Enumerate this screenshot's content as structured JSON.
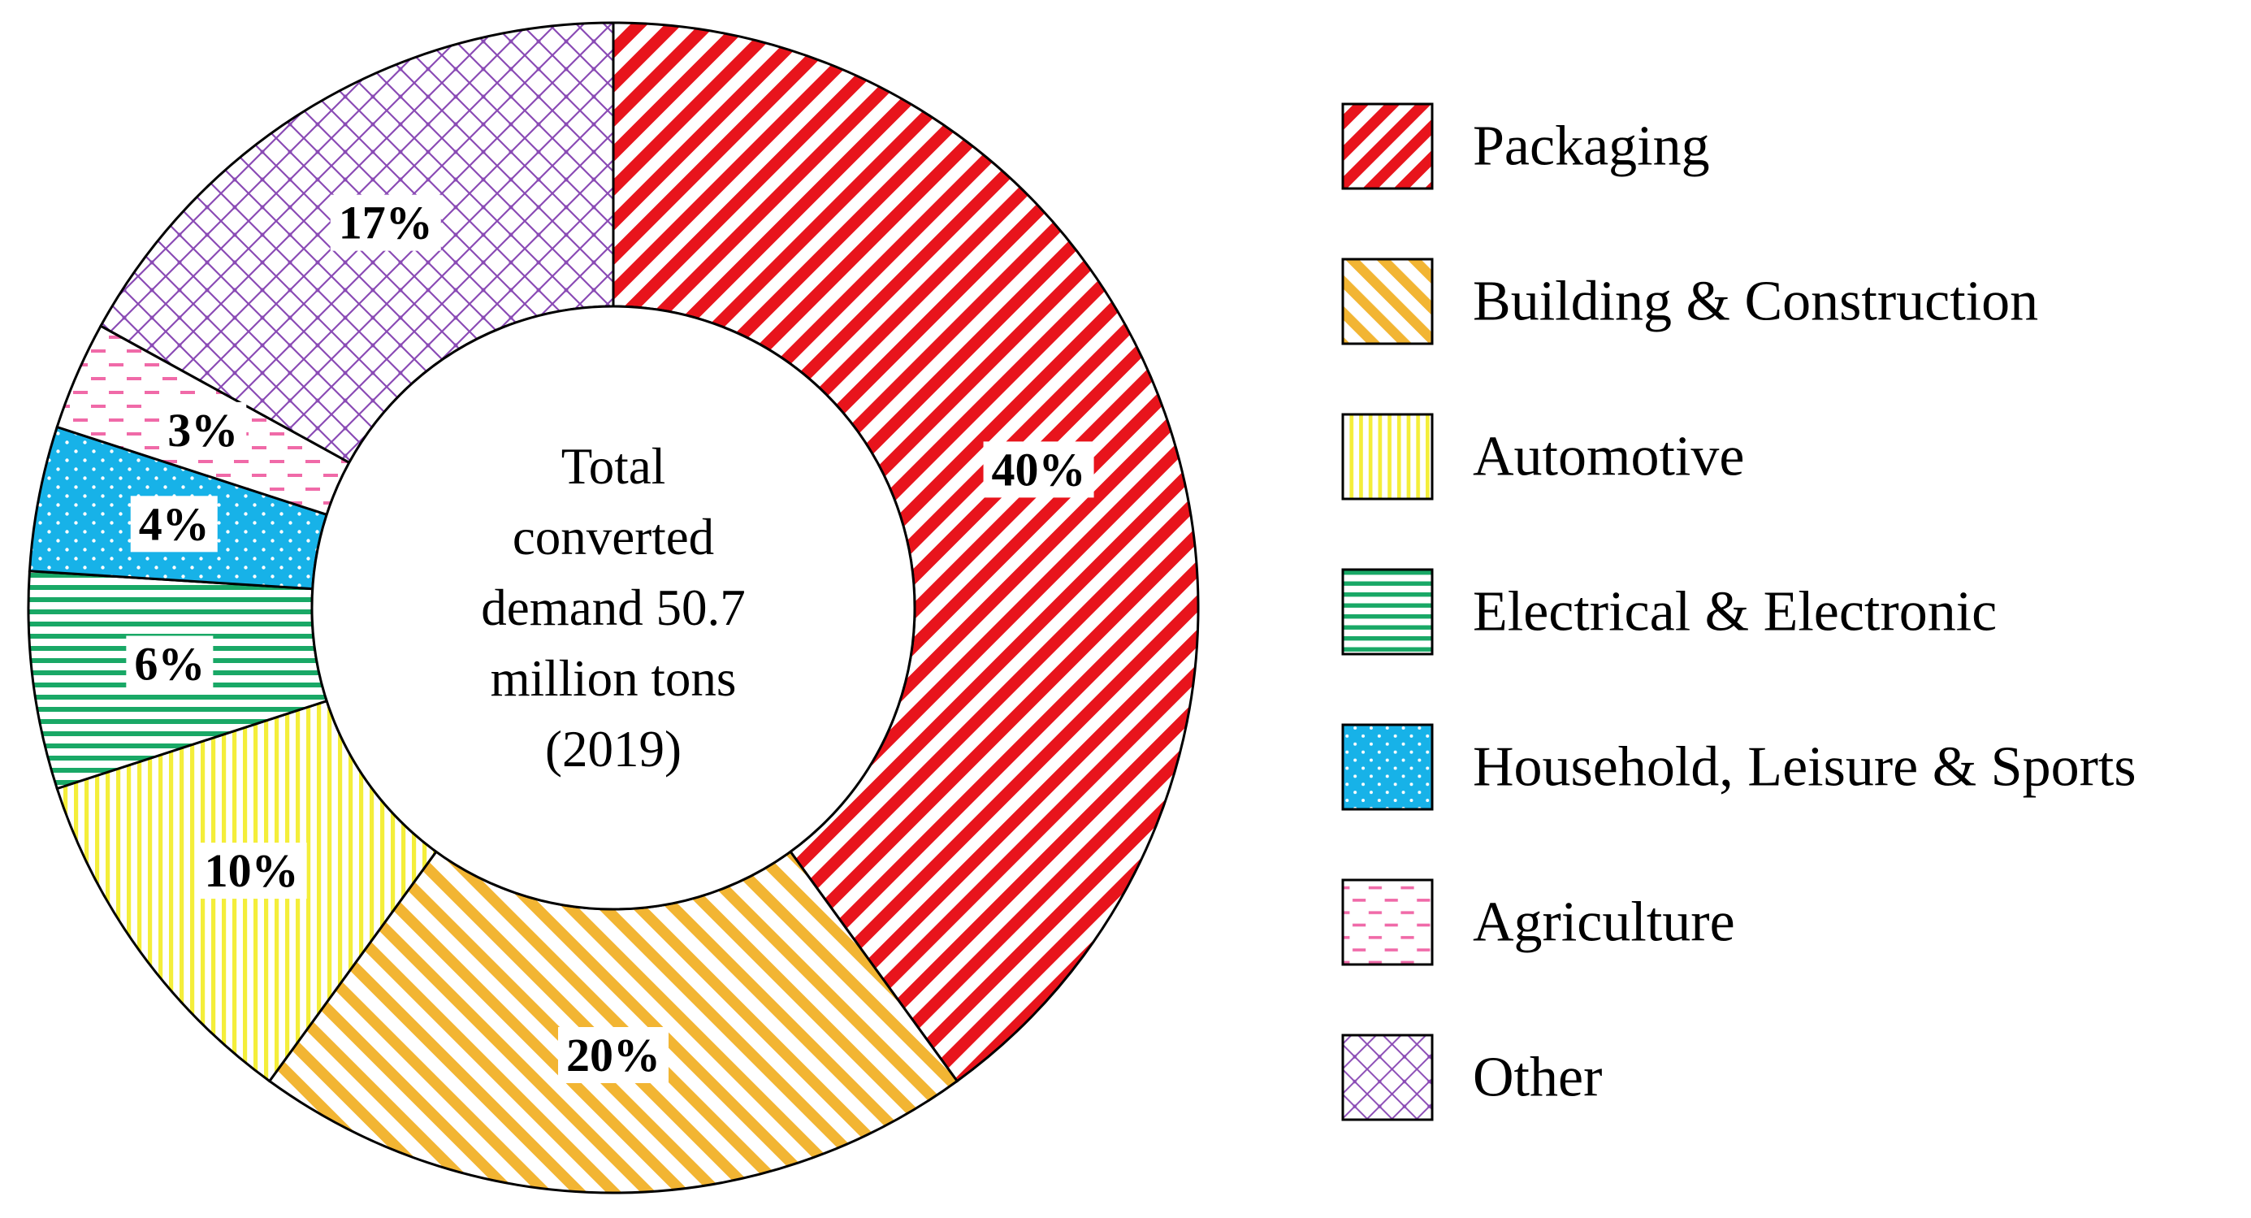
{
  "chart_data": {
    "type": "pie",
    "variant": "donut",
    "center_text": [
      "Total",
      "converted",
      "demand 50.7",
      "million tons",
      "(2019)"
    ],
    "slices": [
      {
        "name": "Packaging",
        "value": 40,
        "label": "40%",
        "color": "#e8141c",
        "pattern": "diagonal-down"
      },
      {
        "name": "Building & Construction",
        "value": 20,
        "label": "20%",
        "color": "#f2b533",
        "pattern": "diagonal-up"
      },
      {
        "name": "Automotive",
        "value": 10,
        "label": "10%",
        "color": "#f4ee3a",
        "pattern": "vertical"
      },
      {
        "name": "Electrical & Electronic",
        "value": 6,
        "label": "6%",
        "color": "#19a866",
        "pattern": "horizontal"
      },
      {
        "name": "Household, Leisure & Sports",
        "value": 4,
        "label": "4%",
        "color": "#17b2e8",
        "pattern": "dots"
      },
      {
        "name": "Agriculture",
        "value": 3,
        "label": "3%",
        "color": "#f06aa8",
        "pattern": "dashes"
      },
      {
        "name": "Other",
        "value": 17,
        "label": "17%",
        "color": "#8a4bb5",
        "pattern": "crosshatch"
      }
    ],
    "legend_position": "right"
  }
}
